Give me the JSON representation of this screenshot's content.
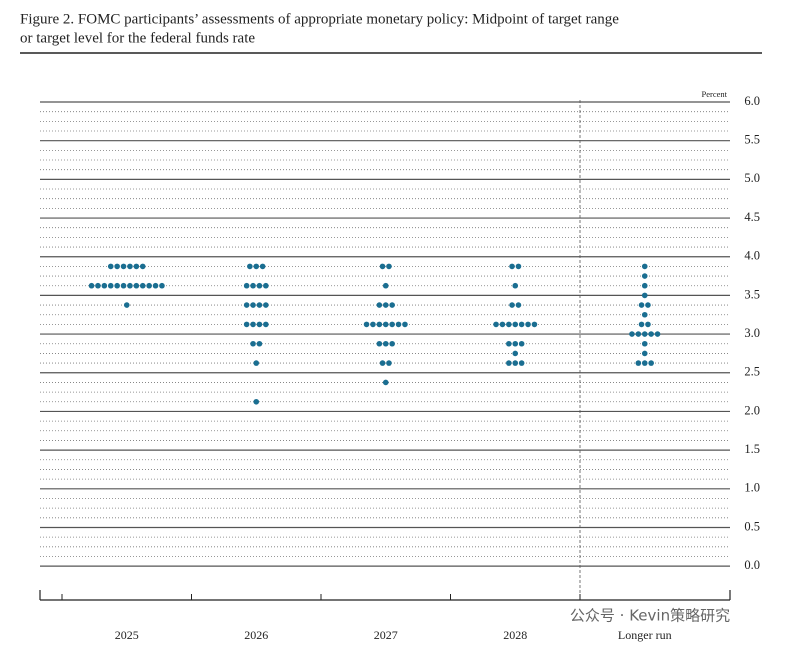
{
  "chart_data": {
    "type": "dot",
    "title_line1": "Figure 2. FOMC participants’ assessments of appropriate monetary policy: Midpoint of target range",
    "title_line2": "or target level for the federal funds rate",
    "y_unit_label": "Percent",
    "watermark": "公众号 · Kevin策略研究",
    "categories": [
      "2025",
      "2026",
      "2027",
      "2028",
      "Longer run"
    ],
    "color": "#1a6e91",
    "values": [
      [
        3.875,
        3.875,
        3.875,
        3.875,
        3.875,
        3.875,
        3.625,
        3.625,
        3.625,
        3.625,
        3.625,
        3.625,
        3.625,
        3.625,
        3.625,
        3.625,
        3.625,
        3.625,
        3.375
      ],
      [
        3.875,
        3.875,
        3.875,
        3.625,
        3.625,
        3.625,
        3.625,
        3.375,
        3.375,
        3.375,
        3.375,
        3.125,
        3.125,
        3.125,
        3.125,
        2.875,
        2.875,
        2.625,
        2.125
      ],
      [
        3.875,
        3.875,
        3.625,
        3.375,
        3.375,
        3.375,
        3.125,
        3.125,
        3.125,
        3.125,
        3.125,
        3.125,
        3.125,
        2.875,
        2.875,
        2.875,
        2.625,
        2.625,
        2.375
      ],
      [
        3.875,
        3.875,
        3.625,
        3.375,
        3.375,
        3.125,
        3.125,
        3.125,
        3.125,
        3.125,
        3.125,
        3.125,
        2.875,
        2.875,
        2.875,
        2.75,
        2.625,
        2.625,
        2.625
      ],
      [
        3.875,
        3.75,
        3.625,
        3.5,
        3.375,
        3.375,
        3.25,
        3.125,
        3.125,
        3,
        3,
        3,
        3,
        3,
        2.875,
        2.75,
        2.625,
        2.625,
        2.625
      ]
    ],
    "ylim": [
      -0.4375,
      6
    ],
    "yticks": [
      {
        "value": 0,
        "label": "0.0"
      },
      {
        "value": 0.5,
        "label": "0.5"
      },
      {
        "value": 1,
        "label": "1.0"
      },
      {
        "value": 1.5,
        "label": "1.5"
      },
      {
        "value": 2,
        "label": "2.0"
      },
      {
        "value": 2.5,
        "label": "2.5"
      },
      {
        "value": 3,
        "label": "3.0"
      },
      {
        "value": 3.5,
        "label": "3.5"
      },
      {
        "value": 4,
        "label": "4.0"
      },
      {
        "value": 4.5,
        "label": "4.5"
      },
      {
        "value": 5,
        "label": "5.0"
      },
      {
        "value": 5.5,
        "label": "5.5"
      },
      {
        "value": 6,
        "label": "6.0"
      }
    ],
    "grid": true
  }
}
